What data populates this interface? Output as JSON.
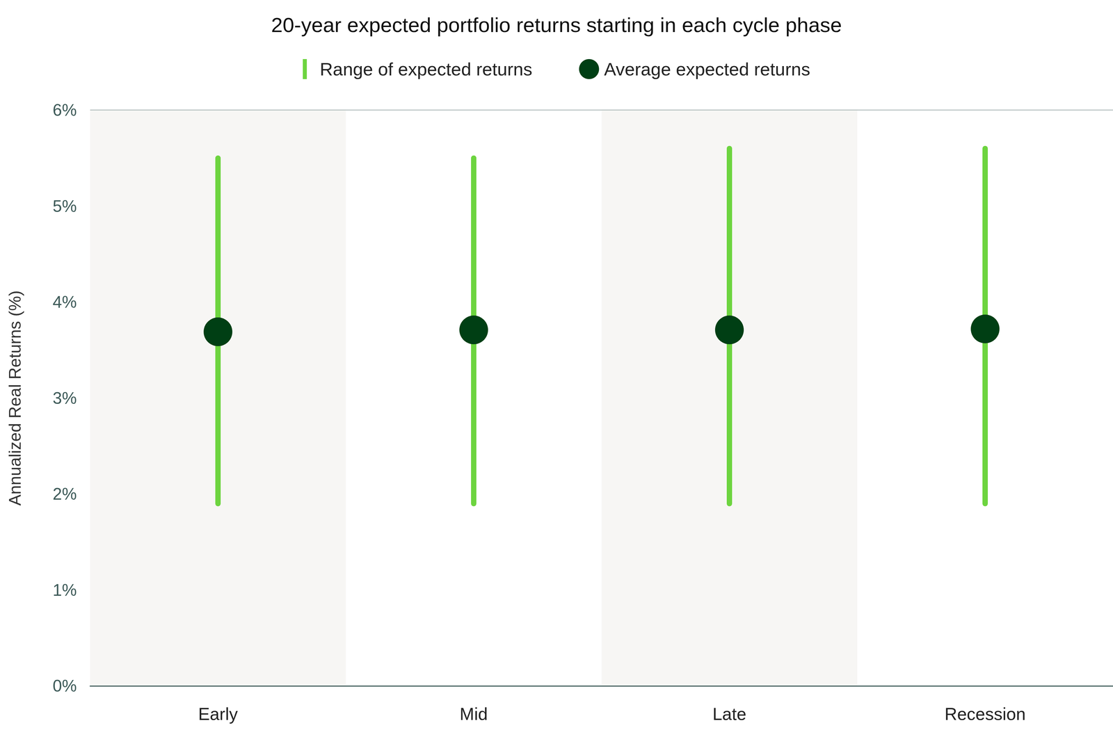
{
  "chart_data": {
    "type": "range",
    "title": "20-year expected portfolio returns starting in each cycle phase",
    "y_label": "Annualized Real Returns (%)",
    "categories": [
      "Early",
      "Mid",
      "Late",
      "Recession"
    ],
    "series": [
      {
        "name": "Range of expected returns",
        "type": "range",
        "color": "#6dd43f",
        "low": [
          1.9,
          1.9,
          1.9,
          1.9
        ],
        "high": [
          5.5,
          5.5,
          5.6,
          5.6
        ]
      },
      {
        "name": "Average expected returns",
        "type": "scatter",
        "color": "#003f14",
        "values": [
          3.69,
          3.71,
          3.71,
          3.72
        ]
      }
    ],
    "ylim": [
      0,
      6
    ],
    "yticks": [
      {
        "value": 0,
        "label": "0%"
      },
      {
        "value": 1,
        "label": "1%"
      },
      {
        "value": 2,
        "label": "2%"
      },
      {
        "value": 3,
        "label": "3%"
      },
      {
        "value": 4,
        "label": "4%"
      },
      {
        "value": 5,
        "label": "5%"
      },
      {
        "value": 6,
        "label": "6%"
      }
    ],
    "grid": true,
    "legend": "top"
  }
}
